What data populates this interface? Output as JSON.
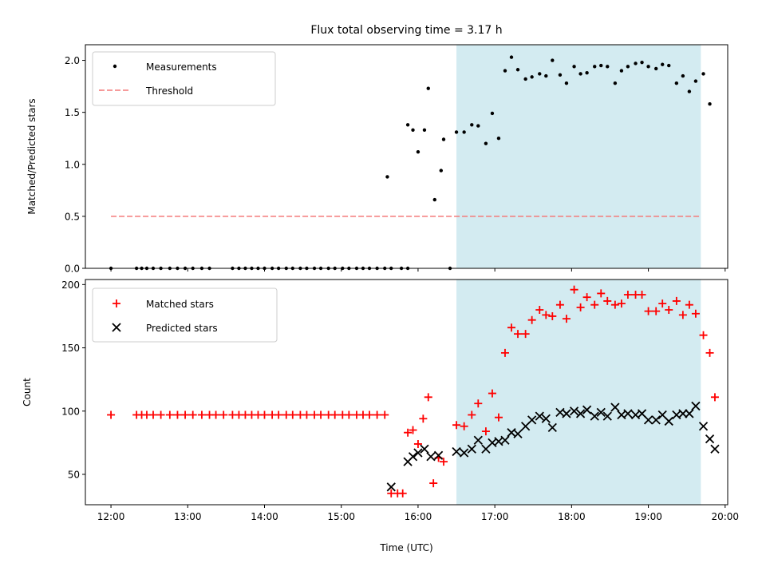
{
  "chart_data": [
    {
      "type": "scatter",
      "title": "Flux total observing time = 3.17 h",
      "xlabel": "",
      "ylabel": "Matched/Predicted stars",
      "xlim": [
        "11:40",
        "20:02"
      ],
      "ylim": [
        0.0,
        2.15
      ],
      "yticks": [
        "0.0",
        "0.5",
        "1.0",
        "1.5",
        "2.0"
      ],
      "shaded_interval": [
        "16:30",
        "19:41"
      ],
      "shade_color": "#d3ebf1",
      "legend_position": "top-left",
      "threshold": {
        "label": "Threshold",
        "value": 0.5,
        "x_range": [
          "12:00",
          "19:41"
        ],
        "color": "#f47a7a",
        "style": "dashed"
      },
      "series": [
        {
          "name": "Measurements",
          "marker": "dot",
          "color": "#000000",
          "points": [
            [
              "12:00",
              0
            ],
            [
              "12:20",
              0
            ],
            [
              "12:24",
              0
            ],
            [
              "12:28",
              0
            ],
            [
              "12:33",
              0
            ],
            [
              "12:39",
              0
            ],
            [
              "12:46",
              0
            ],
            [
              "12:52",
              0
            ],
            [
              "12:58",
              0
            ],
            [
              "13:04",
              0
            ],
            [
              "13:11",
              0
            ],
            [
              "13:17",
              0
            ],
            [
              "13:35",
              0
            ],
            [
              "13:40",
              0
            ],
            [
              "13:45",
              0
            ],
            [
              "13:50",
              0
            ],
            [
              "13:55",
              0
            ],
            [
              "14:00",
              0
            ],
            [
              "14:06",
              0
            ],
            [
              "14:11",
              0
            ],
            [
              "14:17",
              0
            ],
            [
              "14:22",
              0
            ],
            [
              "14:28",
              0
            ],
            [
              "14:33",
              0
            ],
            [
              "14:39",
              0
            ],
            [
              "14:44",
              0
            ],
            [
              "14:50",
              0
            ],
            [
              "14:55",
              0
            ],
            [
              "15:01",
              0
            ],
            [
              "15:06",
              0
            ],
            [
              "15:12",
              0
            ],
            [
              "15:17",
              0
            ],
            [
              "15:22",
              0
            ],
            [
              "15:28",
              0
            ],
            [
              "15:34",
              0
            ],
            [
              "15:39",
              0
            ],
            [
              "15:47",
              0
            ],
            [
              "15:52",
              0
            ],
            [
              "15:36",
              0.88
            ],
            [
              "15:52",
              1.38
            ],
            [
              "15:56",
              1.33
            ],
            [
              "16:00",
              1.12
            ],
            [
              "16:05",
              1.33
            ],
            [
              "16:08",
              1.73
            ],
            [
              "16:13",
              0.66
            ],
            [
              "16:18",
              0.94
            ],
            [
              "16:20",
              1.24
            ],
            [
              "16:25",
              0.0
            ],
            [
              "16:30",
              1.31
            ],
            [
              "16:36",
              1.31
            ],
            [
              "16:42",
              1.38
            ],
            [
              "16:47",
              1.37
            ],
            [
              "16:53",
              1.2
            ],
            [
              "16:58",
              1.49
            ],
            [
              "17:03",
              1.25
            ],
            [
              "17:08",
              1.9
            ],
            [
              "17:13",
              2.03
            ],
            [
              "17:18",
              1.91
            ],
            [
              "17:24",
              1.82
            ],
            [
              "17:29",
              1.84
            ],
            [
              "17:35",
              1.87
            ],
            [
              "17:40",
              1.85
            ],
            [
              "17:45",
              2.0
            ],
            [
              "17:51",
              1.86
            ],
            [
              "17:56",
              1.78
            ],
            [
              "18:02",
              1.94
            ],
            [
              "18:07",
              1.87
            ],
            [
              "18:12",
              1.88
            ],
            [
              "18:18",
              1.94
            ],
            [
              "18:23",
              1.95
            ],
            [
              "18:28",
              1.94
            ],
            [
              "18:34",
              1.78
            ],
            [
              "18:39",
              1.9
            ],
            [
              "18:44",
              1.94
            ],
            [
              "18:50",
              1.97
            ],
            [
              "18:55",
              1.98
            ],
            [
              "19:00",
              1.94
            ],
            [
              "19:06",
              1.92
            ],
            [
              "19:11",
              1.96
            ],
            [
              "19:16",
              1.95
            ],
            [
              "19:22",
              1.78
            ],
            [
              "19:27",
              1.85
            ],
            [
              "19:32",
              1.7
            ],
            [
              "19:37",
              1.8
            ],
            [
              "19:43",
              1.87
            ],
            [
              "19:48",
              1.58
            ]
          ]
        }
      ]
    },
    {
      "type": "scatter",
      "title": "",
      "xlabel": "Time (UTC)",
      "ylabel": "Count",
      "xlim": [
        "11:40",
        "20:02"
      ],
      "ylim": [
        26,
        204
      ],
      "xticks": [
        "12:00",
        "13:00",
        "14:00",
        "15:00",
        "16:00",
        "17:00",
        "18:00",
        "19:00",
        "20:00"
      ],
      "yticks": [
        "50",
        "100",
        "150",
        "200"
      ],
      "shaded_interval": [
        "16:30",
        "19:41"
      ],
      "shade_color": "#d3ebf1",
      "legend_position": "top-left",
      "series": [
        {
          "name": "Matched stars",
          "marker": "plus",
          "color": "#ff0000",
          "points": [
            [
              "12:00",
              97
            ],
            [
              "12:20",
              97
            ],
            [
              "12:24",
              97
            ],
            [
              "12:28",
              97
            ],
            [
              "12:33",
              97
            ],
            [
              "12:39",
              97
            ],
            [
              "12:46",
              97
            ],
            [
              "12:52",
              97
            ],
            [
              "12:58",
              97
            ],
            [
              "13:04",
              97
            ],
            [
              "13:11",
              97
            ],
            [
              "13:17",
              97
            ],
            [
              "13:22",
              97
            ],
            [
              "13:28",
              97
            ],
            [
              "13:35",
              97
            ],
            [
              "13:40",
              97
            ],
            [
              "13:45",
              97
            ],
            [
              "13:50",
              97
            ],
            [
              "13:55",
              97
            ],
            [
              "14:00",
              97
            ],
            [
              "14:06",
              97
            ],
            [
              "14:11",
              97
            ],
            [
              "14:17",
              97
            ],
            [
              "14:22",
              97
            ],
            [
              "14:28",
              97
            ],
            [
              "14:33",
              97
            ],
            [
              "14:39",
              97
            ],
            [
              "14:44",
              97
            ],
            [
              "14:50",
              97
            ],
            [
              "14:55",
              97
            ],
            [
              "15:01",
              97
            ],
            [
              "15:06",
              97
            ],
            [
              "15:12",
              97
            ],
            [
              "15:17",
              97
            ],
            [
              "15:22",
              97
            ],
            [
              "15:28",
              97
            ],
            [
              "15:34",
              97
            ],
            [
              "15:39",
              35
            ],
            [
              "15:44",
              35
            ],
            [
              "15:48",
              35
            ],
            [
              "15:52",
              83
            ],
            [
              "15:56",
              85
            ],
            [
              "16:00",
              74
            ],
            [
              "16:04",
              94
            ],
            [
              "16:08",
              111
            ],
            [
              "16:12",
              43
            ],
            [
              "16:16",
              63
            ],
            [
              "16:20",
              60
            ],
            [
              "16:30",
              89
            ],
            [
              "16:36",
              88
            ],
            [
              "16:42",
              97
            ],
            [
              "16:47",
              106
            ],
            [
              "16:53",
              84
            ],
            [
              "16:58",
              114
            ],
            [
              "17:03",
              95
            ],
            [
              "17:08",
              146
            ],
            [
              "17:13",
              166
            ],
            [
              "17:18",
              161
            ],
            [
              "17:24",
              161
            ],
            [
              "17:29",
              172
            ],
            [
              "17:35",
              180
            ],
            [
              "17:40",
              176
            ],
            [
              "17:45",
              175
            ],
            [
              "17:51",
              184
            ],
            [
              "17:56",
              173
            ],
            [
              "18:02",
              196
            ],
            [
              "18:07",
              182
            ],
            [
              "18:12",
              190
            ],
            [
              "18:18",
              184
            ],
            [
              "18:23",
              193
            ],
            [
              "18:28",
              187
            ],
            [
              "18:34",
              184
            ],
            [
              "18:39",
              185
            ],
            [
              "18:44",
              192
            ],
            [
              "18:50",
              192
            ],
            [
              "18:55",
              192
            ],
            [
              "19:00",
              179
            ],
            [
              "19:06",
              179
            ],
            [
              "19:11",
              185
            ],
            [
              "19:16",
              180
            ],
            [
              "19:22",
              187
            ],
            [
              "19:27",
              176
            ],
            [
              "19:32",
              184
            ],
            [
              "19:37",
              177
            ],
            [
              "19:43",
              160
            ],
            [
              "19:48",
              146
            ],
            [
              "19:52",
              111
            ]
          ]
        },
        {
          "name": "Predicted stars",
          "marker": "x",
          "color": "#000000",
          "points": [
            [
              "15:39",
              40
            ],
            [
              "15:52",
              60
            ],
            [
              "15:56",
              64
            ],
            [
              "16:00",
              67
            ],
            [
              "16:05",
              70
            ],
            [
              "16:10",
              64
            ],
            [
              "16:16",
              65
            ],
            [
              "16:30",
              68
            ],
            [
              "16:36",
              67
            ],
            [
              "16:42",
              70
            ],
            [
              "16:47",
              77
            ],
            [
              "16:53",
              70
            ],
            [
              "16:58",
              75
            ],
            [
              "17:03",
              76
            ],
            [
              "17:08",
              77
            ],
            [
              "17:13",
              83
            ],
            [
              "17:18",
              82
            ],
            [
              "17:24",
              88
            ],
            [
              "17:29",
              93
            ],
            [
              "17:35",
              96
            ],
            [
              "17:40",
              94
            ],
            [
              "17:45",
              87
            ],
            [
              "17:51",
              99
            ],
            [
              "17:56",
              98
            ],
            [
              "18:02",
              100
            ],
            [
              "18:07",
              98
            ],
            [
              "18:12",
              101
            ],
            [
              "18:18",
              96
            ],
            [
              "18:23",
              99
            ],
            [
              "18:28",
              96
            ],
            [
              "18:34",
              103
            ],
            [
              "18:39",
              97
            ],
            [
              "18:44",
              98
            ],
            [
              "18:50",
              97
            ],
            [
              "18:55",
              98
            ],
            [
              "19:00",
              93
            ],
            [
              "19:06",
              93
            ],
            [
              "19:11",
              97
            ],
            [
              "19:16",
              92
            ],
            [
              "19:22",
              97
            ],
            [
              "19:27",
              98
            ],
            [
              "19:32",
              98
            ],
            [
              "19:37",
              104
            ],
            [
              "19:43",
              88
            ],
            [
              "19:48",
              78
            ],
            [
              "19:52",
              70
            ]
          ]
        }
      ]
    }
  ]
}
